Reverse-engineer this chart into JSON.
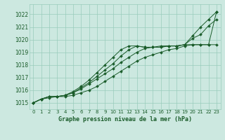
{
  "background_color": "#cce8e0",
  "grid_color": "#99ccbb",
  "line_color": "#1a5c2a",
  "marker_color": "#1a5c2a",
  "title": "Graphe pression niveau de la mer (hPa)",
  "ylim": [
    1014.5,
    1022.8
  ],
  "xlim": [
    -0.5,
    23.5
  ],
  "yticks": [
    1015,
    1016,
    1017,
    1018,
    1019,
    1020,
    1021,
    1022
  ],
  "xticks": [
    0,
    1,
    2,
    3,
    4,
    5,
    6,
    7,
    8,
    9,
    10,
    11,
    12,
    13,
    14,
    15,
    16,
    17,
    18,
    19,
    20,
    21,
    22,
    23
  ],
  "series": [
    [
      1015.0,
      1015.3,
      1015.4,
      1015.5,
      1015.5,
      1015.6,
      1015.8,
      1016.0,
      1016.3,
      1016.7,
      1017.1,
      1017.5,
      1017.9,
      1018.3,
      1018.6,
      1018.8,
      1019.0,
      1019.2,
      1019.3,
      1019.5,
      1019.6,
      1019.6,
      1019.6,
      1019.6
    ],
    [
      1015.0,
      1015.3,
      1015.5,
      1015.5,
      1015.6,
      1015.8,
      1016.1,
      1016.5,
      1016.9,
      1017.3,
      1017.7,
      1018.2,
      1018.6,
      1019.0,
      1019.3,
      1019.4,
      1019.5,
      1019.5,
      1019.5,
      1019.6,
      1020.1,
      1020.4,
      1021.1,
      1021.6
    ],
    [
      1015.0,
      1015.3,
      1015.5,
      1015.5,
      1015.6,
      1015.8,
      1016.2,
      1016.6,
      1017.1,
      1017.6,
      1018.1,
      1018.7,
      1019.2,
      1019.5,
      1019.4,
      1019.4,
      1019.4,
      1019.5,
      1019.5,
      1019.6,
      1019.6,
      1019.6,
      1019.6,
      1022.2
    ],
    [
      1015.0,
      1015.3,
      1015.5,
      1015.5,
      1015.6,
      1015.9,
      1016.3,
      1016.8,
      1017.4,
      1018.0,
      1018.6,
      1019.2,
      1019.5,
      1019.5,
      1019.4,
      1019.4,
      1019.4,
      1019.5,
      1019.5,
      1019.6,
      1020.3,
      1021.0,
      1021.6,
      1022.2
    ]
  ]
}
